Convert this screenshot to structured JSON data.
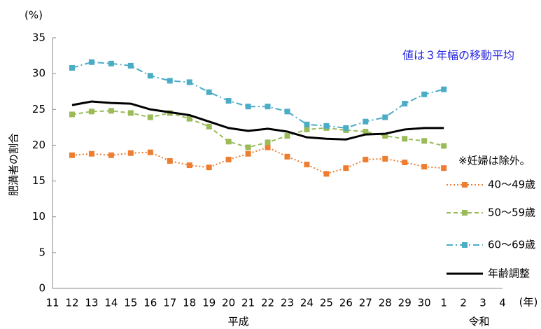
{
  "chart_data": {
    "type": "line",
    "y_unit": "(%)",
    "y_axis_label": "肥満者の割合",
    "x_unit": "(年)",
    "annotation": "値は３年幅の移動平均",
    "note": "※妊婦は除外。",
    "categories": [
      "11",
      "12",
      "13",
      "14",
      "15",
      "16",
      "17",
      "18",
      "19",
      "20",
      "21",
      "22",
      "23",
      "24",
      "25",
      "26",
      "27",
      "28",
      "29",
      "30",
      "1",
      "2",
      "3",
      "4"
    ],
    "eras": [
      {
        "label": "平成"
      },
      {
        "label": "令和"
      }
    ],
    "ylim": [
      0,
      35
    ],
    "yticks": [
      0,
      5,
      10,
      15,
      20,
      25,
      30,
      35
    ],
    "grid": false,
    "series": [
      {
        "name": "40～49歳",
        "color": "#ed7d31",
        "line_style": "dotted",
        "marker": "square",
        "values": [
          null,
          18.6,
          18.8,
          18.6,
          18.9,
          19.0,
          17.8,
          17.2,
          16.9,
          18.0,
          18.8,
          19.7,
          18.4,
          17.3,
          16.0,
          16.8,
          18.0,
          18.1,
          17.6,
          17.0,
          16.8,
          null,
          null,
          null
        ]
      },
      {
        "name": "50～59歳",
        "color": "#9bbb59",
        "line_style": "dashed",
        "marker": "square",
        "values": [
          null,
          24.3,
          24.7,
          24.8,
          24.5,
          23.9,
          24.5,
          23.7,
          22.6,
          20.5,
          19.7,
          20.4,
          21.3,
          22.2,
          22.4,
          22.1,
          21.9,
          21.3,
          20.9,
          20.6,
          19.9,
          null,
          null,
          null
        ]
      },
      {
        "name": "60～69歳",
        "color": "#4bacc6",
        "line_style": "dashdot",
        "marker": "square",
        "values": [
          null,
          30.8,
          31.6,
          31.4,
          31.1,
          29.7,
          29.0,
          28.8,
          27.4,
          26.2,
          25.4,
          25.4,
          24.7,
          22.9,
          22.7,
          22.4,
          23.3,
          23.9,
          25.8,
          27.1,
          27.8,
          null,
          null,
          null
        ]
      },
      {
        "name": "年齢調整",
        "color": "#000000",
        "line_style": "solid",
        "marker": null,
        "values": [
          null,
          25.6,
          26.1,
          25.9,
          25.8,
          25.0,
          24.6,
          24.2,
          23.3,
          22.4,
          22.0,
          22.3,
          21.9,
          21.1,
          20.9,
          20.8,
          21.5,
          21.6,
          22.2,
          22.4,
          22.4,
          null,
          null,
          null
        ]
      }
    ]
  }
}
